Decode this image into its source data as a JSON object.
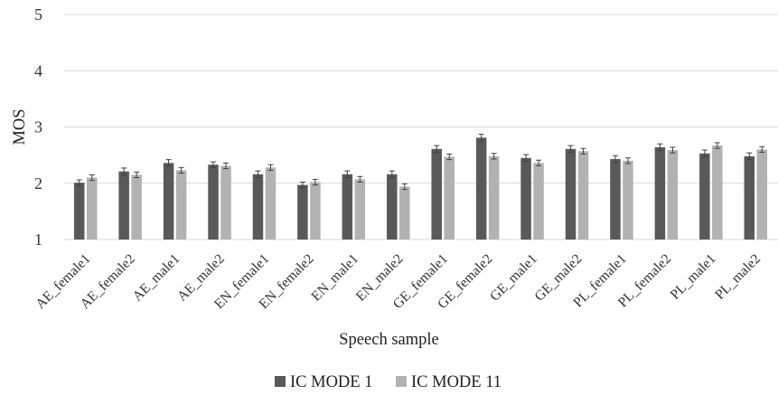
{
  "chart_data": {
    "type": "bar",
    "title": "",
    "xlabel": "Speech sample",
    "ylabel": "MOS",
    "ylim": [
      1,
      5
    ],
    "yticks": [
      1,
      2,
      3,
      4,
      5
    ],
    "grid": true,
    "legend_position": "bottom",
    "categories": [
      "AE_female1",
      "AE_female2",
      "AE_male1",
      "AE_male2",
      "EN_female1",
      "EN_female2",
      "EN_male1",
      "EN_male2",
      "GE_female1",
      "GE_female2",
      "GE_male1",
      "GE_male2",
      "PL_female1",
      "PL_female2",
      "PL_male1",
      "PL_male2"
    ],
    "series": [
      {
        "name": "IC MODE 1",
        "color": "#595959",
        "values": [
          2.01,
          2.21,
          2.36,
          2.33,
          2.16,
          1.97,
          2.16,
          2.16,
          2.61,
          2.81,
          2.45,
          2.61,
          2.43,
          2.64,
          2.53,
          2.48
        ],
        "error": [
          0.05,
          0.06,
          0.06,
          0.05,
          0.06,
          0.05,
          0.06,
          0.06,
          0.06,
          0.06,
          0.06,
          0.06,
          0.06,
          0.06,
          0.06,
          0.06
        ]
      },
      {
        "name": "IC MODE 11",
        "color": "#b2b2b2",
        "values": [
          2.1,
          2.15,
          2.23,
          2.31,
          2.28,
          2.02,
          2.07,
          1.94,
          2.47,
          2.48,
          2.36,
          2.57,
          2.4,
          2.59,
          2.67,
          2.6
        ],
        "error": [
          0.05,
          0.05,
          0.05,
          0.05,
          0.05,
          0.05,
          0.05,
          0.05,
          0.05,
          0.05,
          0.05,
          0.05,
          0.05,
          0.05,
          0.05,
          0.05
        ]
      }
    ]
  }
}
